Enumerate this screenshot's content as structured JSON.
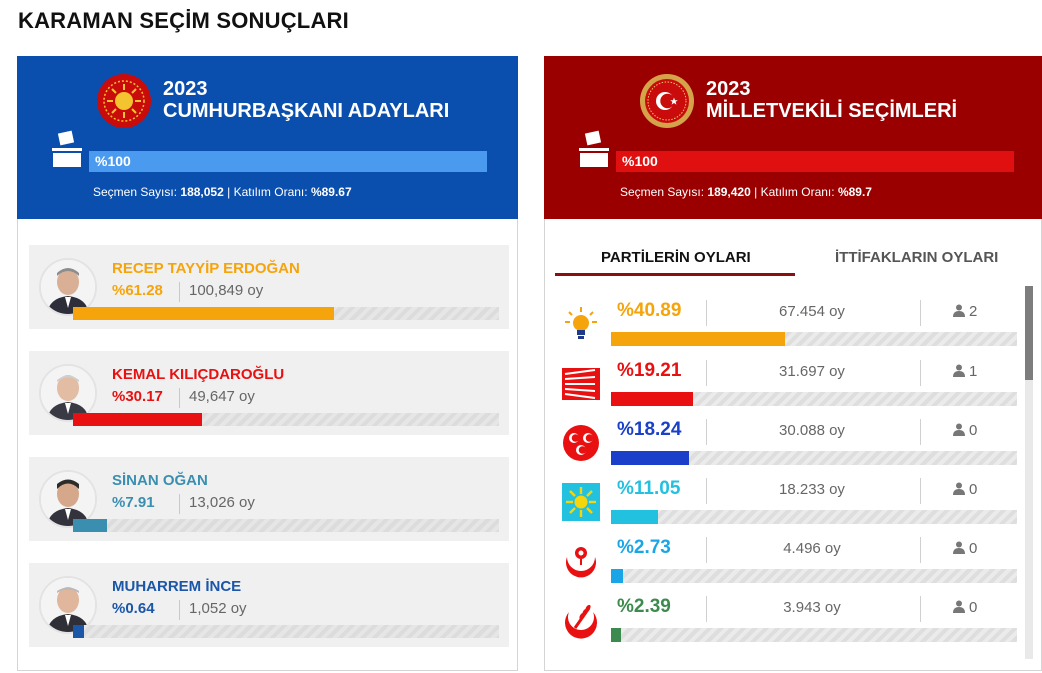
{
  "page": {
    "title": "KARAMAN SEÇİM SONUÇLARI"
  },
  "colors": {
    "presidential_header": "#0b4fae",
    "parliament_header": "#9b0000",
    "presidential_progress": "#4a9bf0",
    "parliament_progress": "#e01010"
  },
  "presidential": {
    "year": "2023",
    "title": "CUMHURBAŞKANI ADAYLARI",
    "emblem_icon": "presidential-seal-icon",
    "progress_label": "%100",
    "progress": 1.0,
    "voters_label": "Seçmen Sayısı:",
    "voters_value": "188,052",
    "turnout_label": "| Katılım Oranı:",
    "turnout_value": "%89.67",
    "candidates": [
      {
        "name": "RECEP TAYYİP ERDOĞAN",
        "percent": "%61.28",
        "percent_value": 61.28,
        "votes": "100,849 oy",
        "color": "#f5a40b"
      },
      {
        "name": "KEMAL KILIÇDAROĞLU",
        "percent": "%30.17",
        "percent_value": 30.17,
        "votes": "49,647 oy",
        "color": "#e81010"
      },
      {
        "name": "SİNAN OĞAN",
        "percent": "%7.91",
        "percent_value": 7.91,
        "votes": "13,026 oy",
        "color": "#3a8fb0"
      },
      {
        "name": "MUHARREM İNCE",
        "percent": "%0.64",
        "percent_value": 0.64,
        "votes": "1,052 oy",
        "color": "#1b56a8"
      }
    ]
  },
  "parliament": {
    "year": "2023",
    "title": "MİLLETVEKİLİ SEÇİMLERİ",
    "emblem_icon": "parliament-seal-icon",
    "progress_label": "%100",
    "progress": 1.0,
    "voters_label": "Seçmen Sayısı:",
    "voters_value": "189,420",
    "turnout_label": "| Katılım Oranı:",
    "turnout_value": "%89.7",
    "tabs": [
      {
        "label": "PARTİLERİN OYLARI",
        "active": true
      },
      {
        "label": "İTTİFAKLARIN OYLARI",
        "active": false
      }
    ],
    "parties": [
      {
        "logo": "akp-bulb-icon",
        "percent": "%40.89",
        "percent_value": 40.89,
        "votes": "67.454 oy",
        "seats": "2",
        "color": "#f5a40b"
      },
      {
        "logo": "chp-arrows-icon",
        "percent": "%19.21",
        "percent_value": 19.21,
        "votes": "31.697 oy",
        "seats": "1",
        "color": "#e81010"
      },
      {
        "logo": "mhp-crescents-icon",
        "percent": "%18.24",
        "percent_value": 18.24,
        "votes": "30.088 oy",
        "seats": "0",
        "color": "#1a3fc8"
      },
      {
        "logo": "iyi-sun-icon",
        "percent": "%11.05",
        "percent_value": 11.05,
        "votes": "18.233 oy",
        "seats": "0",
        "color": "#22c1e0"
      },
      {
        "logo": "bbp-rose-icon",
        "percent": "%2.73",
        "percent_value": 2.73,
        "votes": "4.496 oy",
        "seats": "0",
        "color": "#1aa6e6"
      },
      {
        "logo": "ydp-wheat-crescent-icon",
        "percent": "%2.39",
        "percent_value": 2.39,
        "votes": "3.943 oy",
        "seats": "0",
        "color": "#3d8a4e"
      }
    ]
  }
}
